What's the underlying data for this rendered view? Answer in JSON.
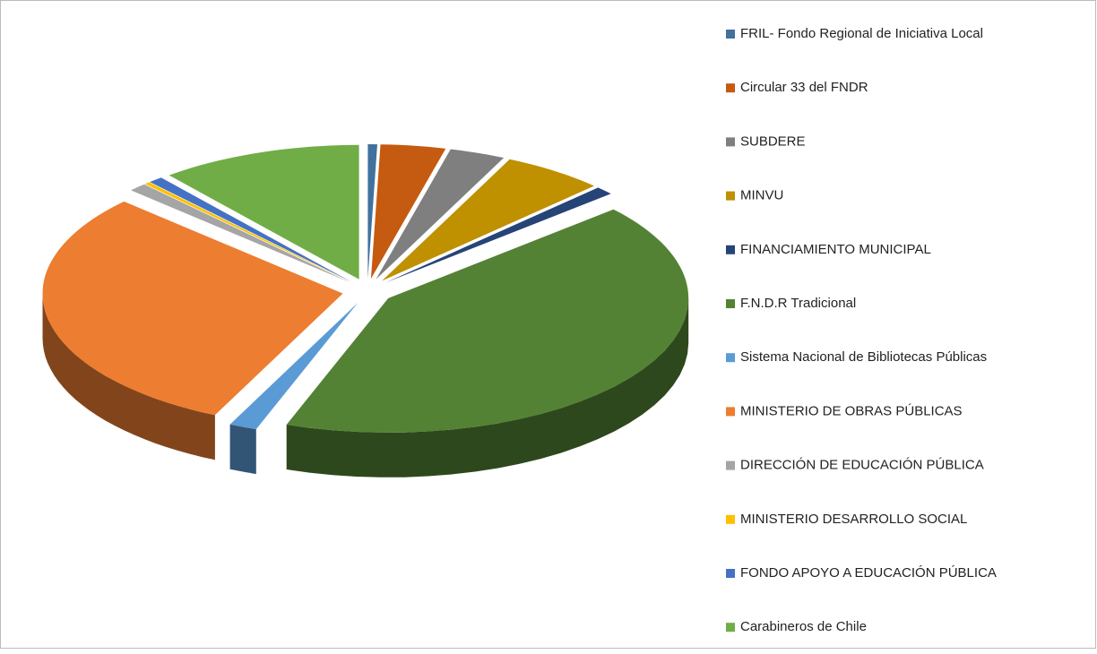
{
  "chart_data": {
    "type": "pie3d",
    "categories": [
      "FRIL- Fondo Regional de Iniciativa Local",
      "Circular 33 del FNDR",
      "SUBDERE",
      "MINVU",
      "FINANCIAMIENTO MUNICIPAL",
      "F.N.D.R Tradicional",
      "Sistema Nacional de Bibliotecas Públicas",
      "MINISTERIO DE OBRAS PÚBLICAS",
      "DIRECCIÓN DE EDUCACIÓN PÚBLICA",
      "MINISTERIO DESARROLLO SOCIAL",
      "FONDO APOYO A EDUCACIÓN PÚBLICA",
      "Carabineros de Chile"
    ],
    "values": [
      0.5,
      3.5,
      3,
      5.5,
      1,
      42,
      1.5,
      30,
      1,
      0.3,
      0.8,
      10.9
    ],
    "colors": [
      "#41719c",
      "#c55a11",
      "#7f7f7f",
      "#bf9000",
      "#264478",
      "#548235",
      "#5b9bd5",
      "#ed7d31",
      "#a5a5a5",
      "#ffc000",
      "#4472c4",
      "#70ad47"
    ],
    "legend": "right"
  }
}
